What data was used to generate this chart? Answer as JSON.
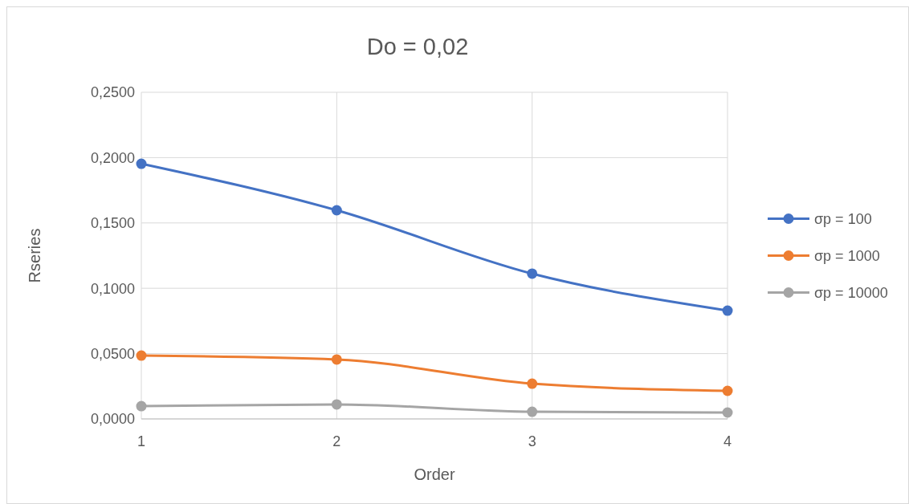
{
  "chart_data": {
    "type": "line",
    "title": "Do = 0,02",
    "xlabel": "Order",
    "ylabel": "Rseries",
    "x": [
      1,
      2,
      3,
      4
    ],
    "xlim": [
      1,
      4
    ],
    "xticks": [
      1,
      2,
      3,
      4
    ],
    "ylim": [
      0,
      0.25
    ],
    "yticks": [
      {
        "value": 0,
        "label": "0,0000"
      },
      {
        "value": 0.05,
        "label": "0,0500"
      },
      {
        "value": 0.1,
        "label": "0,1000"
      },
      {
        "value": 0.15,
        "label": "0,1500"
      },
      {
        "value": 0.2,
        "label": "0,2000"
      },
      {
        "value": 0.25,
        "label": "0,2500"
      }
    ],
    "grid": true,
    "legend": "right",
    "marker": "circle",
    "line_style": "solid",
    "series": [
      {
        "name": "σp = 100",
        "color": "#4472c4",
        "values": [
          0.1953,
          0.1597,
          0.1112,
          0.0829
        ]
      },
      {
        "name": "σp = 1000",
        "color": "#ed7d31",
        "values": [
          0.0485,
          0.0455,
          0.027,
          0.0215
        ]
      },
      {
        "name": "σp = 10000",
        "color": "#a5a5a5",
        "values": [
          0.0098,
          0.0111,
          0.0055,
          0.0049
        ]
      }
    ]
  }
}
